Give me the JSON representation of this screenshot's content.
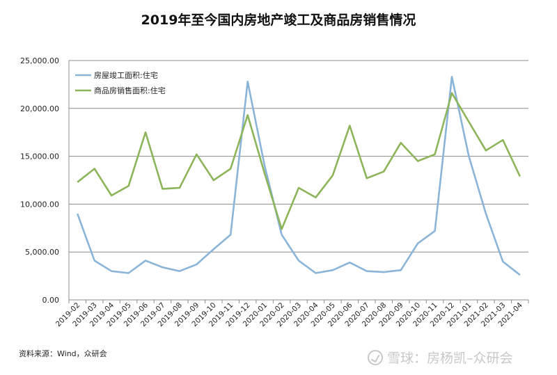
{
  "chart_data": {
    "type": "line",
    "title": "2019年至今国内房地产竣工及商品房销售情况",
    "categories": [
      "2019-02",
      "2019-03",
      "2019-04",
      "2019-05",
      "2019-06",
      "2019-07",
      "2019-08",
      "2019-09",
      "2019-10",
      "2019-11",
      "2019-12",
      "2020-01",
      "2020-02",
      "2020-03",
      "2020-04",
      "2020-05",
      "2020-06",
      "2020-07",
      "2020-08",
      "2020-09",
      "2020-10",
      "2020-11",
      "2020-12",
      "2021-01",
      "2021-02",
      "2021-03",
      "2021-04"
    ],
    "yticks": [
      "0.00",
      "5,000.00",
      "10,000.00",
      "15,000.00",
      "20,000.00",
      "25,000.00"
    ],
    "ylim": [
      0,
      25000
    ],
    "series": [
      {
        "name": "房屋竣工面积:住宅",
        "color": "#8ab4d8",
        "values": [
          9000,
          4100,
          3000,
          2800,
          4100,
          3400,
          3000,
          3700,
          5300,
          6800,
          22800,
          14000,
          6800,
          4100,
          2800,
          3100,
          3900,
          3000,
          2900,
          3100,
          5900,
          7200,
          23300,
          15000,
          9000,
          4000,
          2600
        ]
      },
      {
        "name": "商品房销售面积:住宅",
        "color": "#8cb55a",
        "values": [
          12300,
          13700,
          10900,
          11900,
          17500,
          11600,
          11700,
          15200,
          12500,
          13700,
          19300,
          13200,
          7400,
          11700,
          10700,
          13000,
          18200,
          12700,
          13400,
          16400,
          14500,
          15200,
          21600,
          18600,
          15600,
          16700,
          12900
        ]
      }
    ],
    "legend_position": "top-left",
    "grid": true
  },
  "source_note": "资料来源：Wind，众研会",
  "watermark": "雪球：房杨凯–众研会"
}
